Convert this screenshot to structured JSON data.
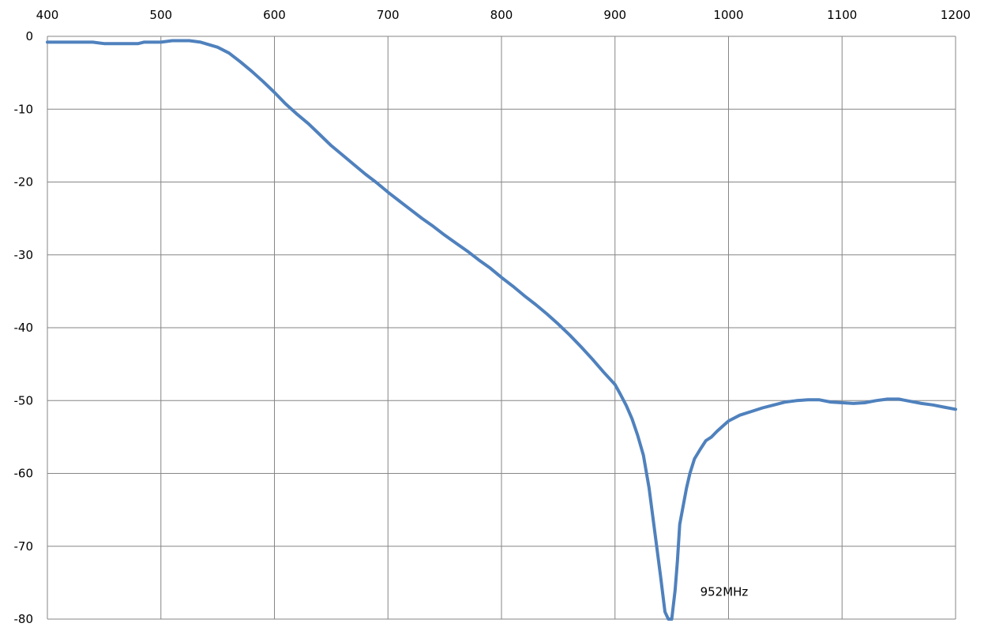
{
  "chart_data": {
    "type": "line",
    "title": "",
    "xlabel": "",
    "ylabel": "",
    "xlim": [
      400,
      1200
    ],
    "ylim": [
      -80,
      0
    ],
    "x_ticks": [
      400,
      500,
      600,
      700,
      800,
      900,
      1000,
      1100,
      1200
    ],
    "y_ticks": [
      0,
      -10,
      -20,
      -30,
      -40,
      -50,
      -60,
      -70,
      -80
    ],
    "x_tick_labels": [
      "400",
      "500",
      "600",
      "700",
      "800",
      "900",
      "1000",
      "1100",
      "1200"
    ],
    "y_tick_labels": [
      "0",
      "-10",
      "-20",
      "-30",
      "-40",
      "-50",
      "-60",
      "-70",
      "-80"
    ],
    "grid": true,
    "legend": "none",
    "series": [
      {
        "color": "#4f81bd",
        "x": [
          400,
          440,
          450,
          480,
          485,
          500,
          510,
          525,
          535,
          550,
          560,
          570,
          580,
          590,
          600,
          610,
          620,
          630,
          640,
          650,
          660,
          670,
          680,
          690,
          700,
          710,
          720,
          730,
          740,
          750,
          760,
          770,
          780,
          790,
          800,
          810,
          820,
          830,
          840,
          850,
          860,
          870,
          880,
          890,
          900,
          905,
          910,
          915,
          920,
          925,
          930,
          935,
          940,
          944,
          947,
          950,
          953,
          955,
          957,
          960,
          963,
          966,
          970,
          975,
          980,
          985,
          990,
          995,
          1000,
          1010,
          1020,
          1030,
          1040,
          1050,
          1060,
          1070,
          1080,
          1090,
          1100,
          1110,
          1120,
          1130,
          1140,
          1150,
          1160,
          1170,
          1180,
          1190,
          1200
        ],
        "y": [
          -0.8,
          -0.8,
          -1.0,
          -1.0,
          -0.8,
          -0.8,
          -0.6,
          -0.6,
          -0.8,
          -1.5,
          -2.3,
          -3.5,
          -4.8,
          -6.2,
          -7.7,
          -9.3,
          -10.7,
          -12.0,
          -13.5,
          -15.0,
          -16.3,
          -17.6,
          -18.9,
          -20.1,
          -21.4,
          -22.6,
          -23.8,
          -25.0,
          -26.1,
          -27.3,
          -28.4,
          -29.5,
          -30.7,
          -31.8,
          -33.1,
          -34.3,
          -35.6,
          -36.8,
          -38.1,
          -39.5,
          -41.0,
          -42.6,
          -44.3,
          -46.1,
          -47.8,
          -49.2,
          -50.7,
          -52.5,
          -54.8,
          -57.5,
          -62.0,
          -68.0,
          -74.0,
          -79.0,
          -80.5,
          -80.5,
          -76.0,
          -72.0,
          -67.0,
          -64.5,
          -62.0,
          -60.0,
          -58.0,
          -56.7,
          -55.5,
          -55.0,
          -54.2,
          -53.5,
          -52.8,
          -52.0,
          -51.5,
          -51.0,
          -50.6,
          -50.2,
          -50.0,
          -49.9,
          -49.9,
          -50.2,
          -50.3,
          -50.4,
          -50.3,
          -50.0,
          -49.8,
          -49.8,
          -50.1,
          -50.4,
          -50.6,
          -50.9,
          -51.2
        ]
      }
    ],
    "annotations": [
      {
        "text": "952MHz",
        "x": 975,
        "y": -76.8
      }
    ]
  }
}
